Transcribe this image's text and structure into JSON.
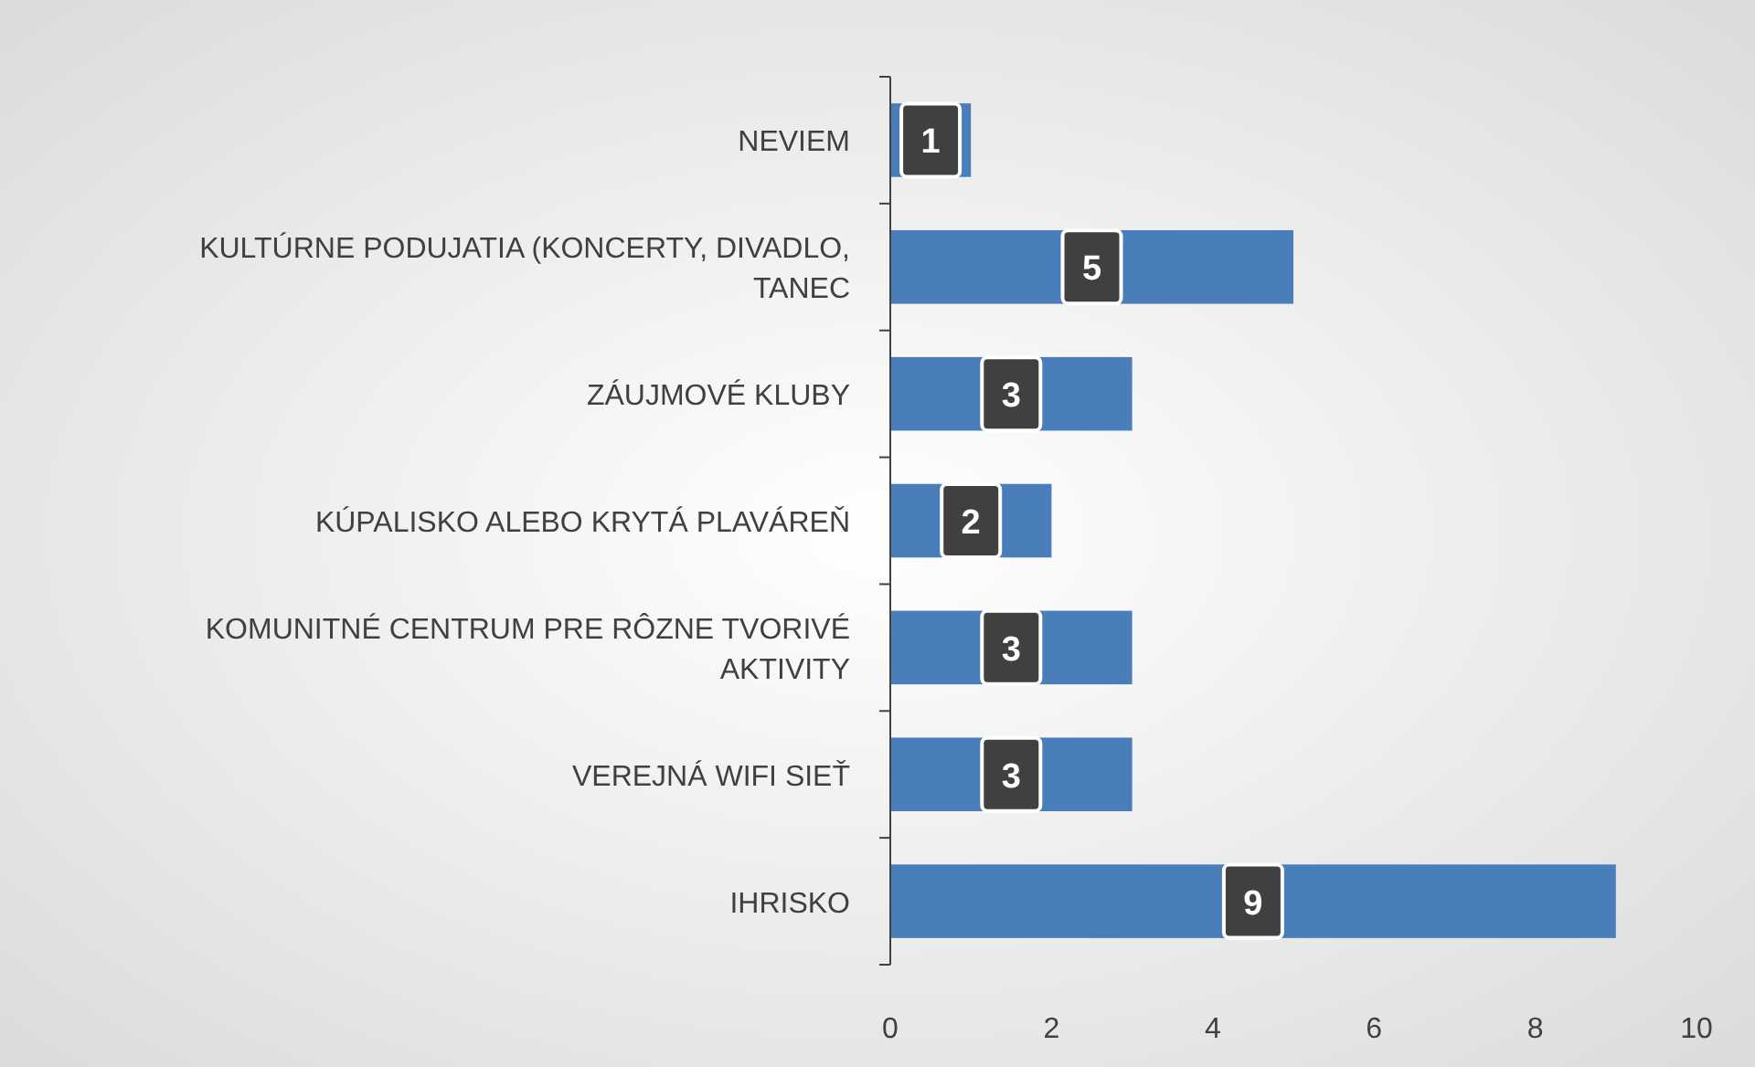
{
  "chart_data": {
    "type": "bar",
    "orientation": "horizontal",
    "categories": [
      "NEVIEM",
      "KULTÚRNE PODUJATIA (KONCERTY, DIVADLO, TANEC",
      "ZÁUJMOVÉ KLUBY",
      "KÚPALISKO ALEBO KRYTÁ PLAVÁREŇ",
      "KOMUNITNÉ CENTRUM PRE RÔZNE TVORIVÉ AKTIVITY",
      "VEREJNÁ WIFI SIEŤ",
      "IHRISKO"
    ],
    "values": [
      1,
      5,
      3,
      2,
      3,
      3,
      9
    ],
    "color": "#4a7ebb",
    "xlim": [
      0,
      10
    ],
    "xticks": [
      0,
      2,
      4,
      6,
      8,
      10
    ],
    "data_labels": true,
    "grid": false
  }
}
